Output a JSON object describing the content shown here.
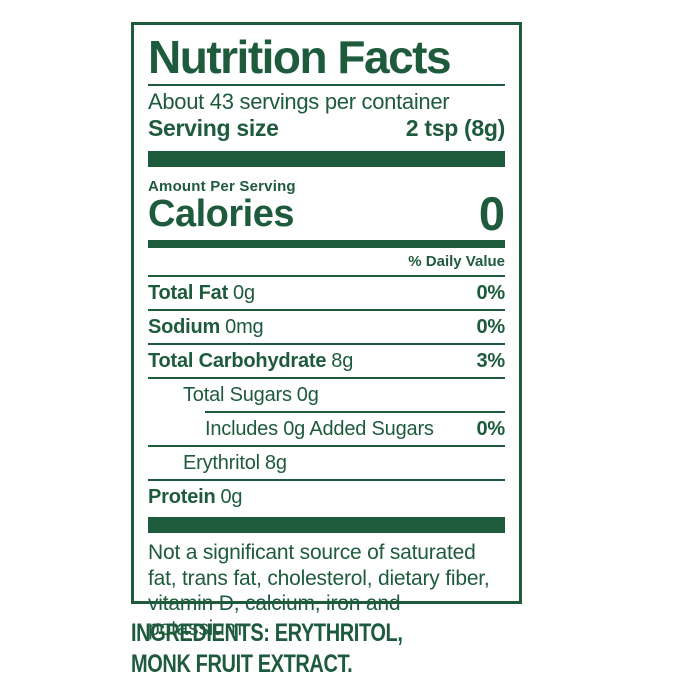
{
  "label": {
    "title": "Nutrition Facts",
    "servings_per_container": "About 43 servings per container",
    "serving_size": {
      "label": "Serving size",
      "value": "2 tsp (8g)"
    },
    "amount_per_serving": "Amount Per Serving",
    "calories": {
      "label": "Calories",
      "value": "0"
    },
    "daily_value_header": "% Daily Value",
    "rows": [
      {
        "name": "Total Fat",
        "amount": "0g",
        "dv": "0%"
      },
      {
        "name": "Sodium",
        "amount": "0mg",
        "dv": "0%"
      },
      {
        "name": "Total Carbohydrate",
        "amount": "8g",
        "dv": "3%"
      },
      {
        "name": "Total Sugars",
        "amount": "0g",
        "dv": ""
      },
      {
        "name": "Includes 0g Added Sugars",
        "amount": "",
        "dv": "0%"
      },
      {
        "name": "Erythritol",
        "amount": "8g",
        "dv": ""
      },
      {
        "name": "Protein",
        "amount": "0g",
        "dv": ""
      }
    ],
    "footnote": "Not a significant source of saturated fat, trans fat, cholesterol, dietary fiber, vitamin D, calcium, iron and potassium.",
    "ingredients": {
      "line1": "INGREDIENTS: ERYTHRITOL,",
      "line2": "MONK FRUIT EXTRACT."
    },
    "colors": {
      "green": "#1E5B3C",
      "background": "#FFFFFF"
    }
  }
}
